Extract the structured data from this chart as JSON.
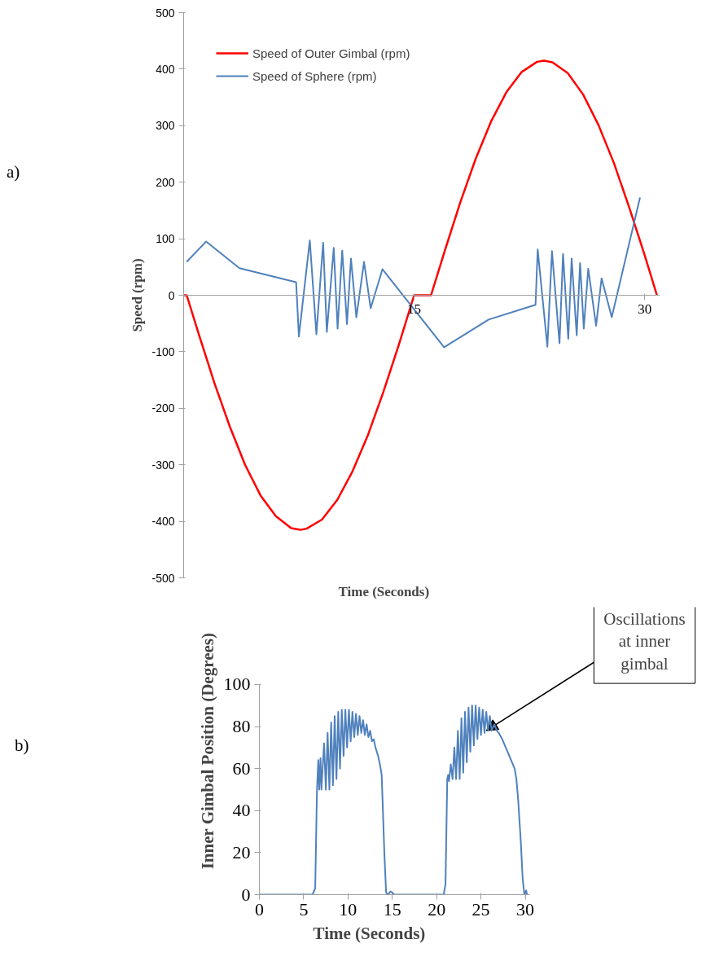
{
  "chart_data": [
    {
      "type": "line",
      "xlabel": "Time (Seconds)",
      "ylabel": "Speed (rpm)",
      "xlim": [
        0,
        31
      ],
      "xticks": [
        15,
        30
      ],
      "ylim": [
        -500,
        500
      ],
      "yticks": [
        -500,
        -400,
        -300,
        -200,
        -100,
        0,
        100,
        200,
        300,
        400,
        500
      ],
      "grid": false,
      "legend": "top left",
      "marker": "none",
      "line_style": "solid",
      "annotations": [
        "a)"
      ],
      "series": [
        {
          "name": "Speed of Outer Gimbal (rpm)",
          "color": "#ff0000",
          "x": [
            0,
            0.2,
            1,
            2,
            3,
            4,
            5,
            6,
            7,
            7.6,
            8,
            9,
            10,
            11,
            12,
            13,
            14,
            15,
            16.1,
            17,
            18,
            19,
            20,
            21,
            22,
            23,
            23.45,
            24,
            25,
            26,
            27,
            28,
            29,
            30,
            30.8
          ],
          "values": [
            0,
            0,
            -70,
            -155,
            -232,
            -300,
            -354,
            -391,
            -412,
            -415,
            -413,
            -397,
            -362,
            -311,
            -247,
            -171,
            -88,
            0,
            0,
            79,
            164,
            241,
            307,
            359,
            395,
            413,
            415,
            412,
            393,
            355,
            301,
            234,
            155,
            71,
            0
          ]
        },
        {
          "name": "Speed of Sphere (rpm)",
          "color": "#4f81bd",
          "x": [
            0.2,
            1.46,
            3.63,
            7.32,
            7.5,
            8.21,
            8.64,
            9.08,
            9.32,
            9.77,
            10.02,
            10.32,
            10.63,
            10.89,
            11.24,
            11.74,
            12.17,
            12.94,
            16.95,
            19.85,
            22.9,
            23.04,
            23.67,
            23.97,
            24.46,
            24.69,
            25.03,
            25.25,
            25.58,
            25.8,
            26.04,
            26.33,
            26.84,
            27.2,
            27.86,
            29.7
          ],
          "values": [
            59,
            95,
            48,
            23,
            -73,
            97,
            -69,
            93,
            -65,
            84,
            -59,
            79,
            -51,
            65,
            -39,
            59,
            -23,
            46,
            -92,
            -43,
            -17,
            81,
            -91,
            78,
            -85,
            73,
            -77,
            65,
            -71,
            57,
            -59,
            47,
            -54,
            30,
            -39,
            173
          ]
        }
      ]
    },
    {
      "type": "line",
      "xlabel": "Time (Seconds)",
      "ylabel": "Inner Gimbal Position (Degrees)",
      "xlim": [
        0,
        30.5
      ],
      "xticks": [
        0,
        5,
        10,
        15,
        20,
        25,
        30
      ],
      "ylim": [
        0,
        100
      ],
      "yticks": [
        0,
        20,
        40,
        60,
        80,
        100
      ],
      "grid": false,
      "legend": false,
      "marker": "none",
      "line_style": "solid",
      "annotations": [
        "b)",
        {
          "text": "Oscillations\nat inner\ngimbal",
          "x": 25.6,
          "y": 78
        }
      ],
      "series": [
        {
          "color": "#4f81bd",
          "x": [
            0,
            6.0,
            6.3,
            6.5,
            6.65,
            6.75,
            6.9,
            7.0,
            7.3,
            7.5,
            7.7,
            7.9,
            8.1,
            8.3,
            8.5,
            8.7,
            8.9,
            9.1,
            9.3,
            9.5,
            9.7,
            9.9,
            10.1,
            10.3,
            10.5,
            10.7,
            10.9,
            11.1,
            11.3,
            11.5,
            11.7,
            11.9,
            12.1,
            12.3,
            12.5,
            12.7,
            12.9,
            13.1,
            13.4,
            13.6,
            13.8,
            13.9,
            14.1,
            14.3,
            14.5,
            14.8,
            15.0,
            15.2,
            20.8,
            21.0,
            21.1,
            21.2,
            21.3,
            21.4,
            21.6,
            21.8,
            22.0,
            22.2,
            22.4,
            22.6,
            22.8,
            23.0,
            23.2,
            23.4,
            23.6,
            23.8,
            24.0,
            24.2,
            24.4,
            24.6,
            24.8,
            25.0,
            25.2,
            25.4,
            25.6,
            25.8,
            26.0,
            26.2,
            26.5,
            26.8,
            27.0,
            27.4,
            27.8,
            28.2,
            28.5,
            28.8,
            29.0,
            29.2,
            29.5,
            29.7,
            29.9,
            30.1,
            30.2
          ],
          "values": [
            0,
            0,
            3,
            50,
            64,
            50,
            65,
            50,
            72,
            50,
            77,
            50,
            82,
            52,
            85,
            55,
            87,
            60,
            88,
            66,
            88,
            70,
            88,
            73,
            87,
            75,
            86,
            76,
            85,
            77,
            83,
            76,
            81,
            75,
            78,
            73,
            74,
            70,
            66,
            62,
            57,
            45,
            20,
            1,
            0,
            1.5,
            1,
            0,
            0,
            5,
            30,
            55,
            57,
            54,
            62,
            55,
            70,
            55,
            78,
            55,
            84,
            58,
            87,
            63,
            89,
            68,
            90,
            71,
            90,
            74,
            89,
            76,
            88,
            77,
            87,
            78,
            85,
            78,
            81,
            78,
            77,
            74,
            70,
            66,
            63,
            60,
            55,
            45,
            25,
            8,
            0,
            2,
            0
          ]
        }
      ]
    }
  ]
}
